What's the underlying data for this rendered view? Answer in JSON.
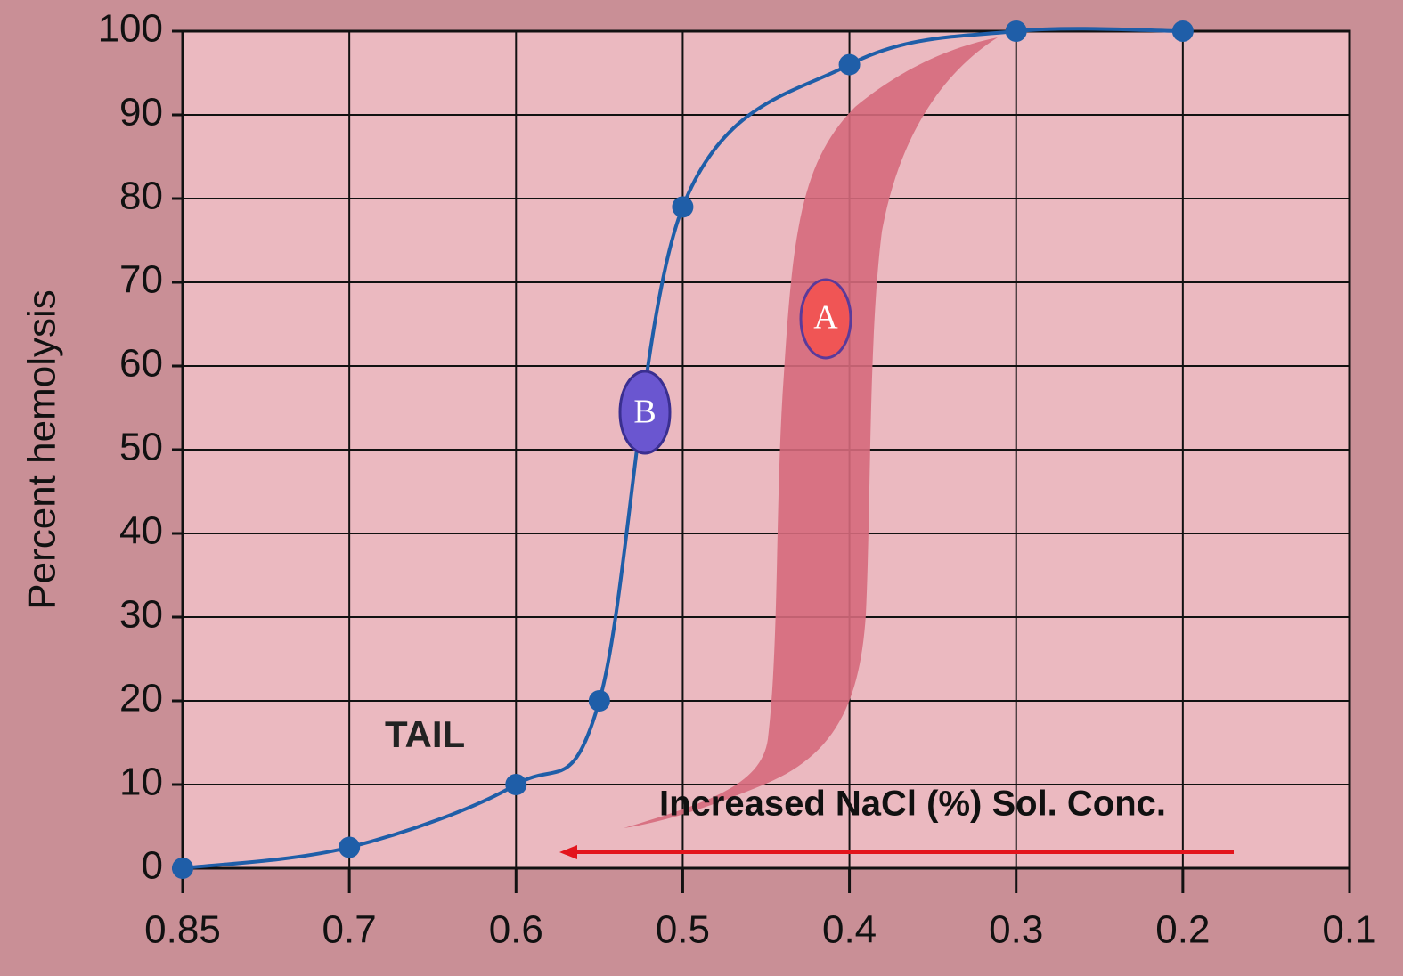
{
  "chart_data": {
    "type": "line",
    "y_label": "Percent hemolysis",
    "x": [
      0.85,
      0.7,
      0.6,
      0.55,
      0.5,
      0.4,
      0.3,
      0.2
    ],
    "series": [
      {
        "name": "B",
        "color": "#1f5ea8",
        "values": [
          0,
          2.5,
          10,
          20,
          79,
          96,
          100,
          100
        ]
      }
    ],
    "xlim": [
      0.85,
      0.1
    ],
    "xticks": [
      0.85,
      0.7,
      0.6,
      0.5,
      0.4,
      0.3,
      0.2,
      0.1
    ],
    "ylim": [
      0,
      100
    ],
    "yticks": [
      0,
      10,
      20,
      30,
      40,
      50,
      60,
      70,
      80,
      90,
      100
    ],
    "grid": true,
    "annotations": {
      "band_label": "A",
      "curve_label": "B",
      "tail": "TAIL",
      "arrow_text": "Increased NaCl (%) Sol. Conc."
    }
  }
}
